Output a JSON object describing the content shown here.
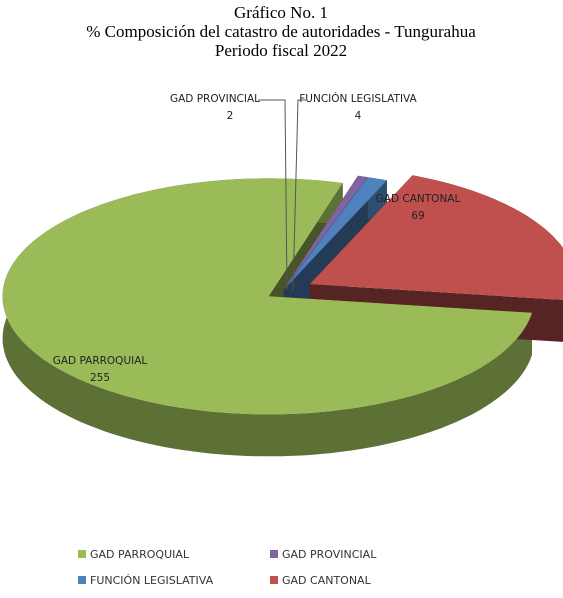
{
  "chart_data": {
    "type": "pie",
    "title": [
      "Gráfico No. 1",
      "% Composición del catastro de autoridades - Tungurahua",
      "Periodo fiscal 2022"
    ],
    "categories": [
      "GAD PARROQUIAL",
      "GAD PROVINCIAL",
      "FUNCIÓN LEGISLATIVA",
      "GAD CANTONAL"
    ],
    "values": [
      255,
      2,
      4,
      69
    ],
    "colors": [
      "#9bbb59",
      "#8064a2",
      "#4f81bd",
      "#c0504d"
    ],
    "legend": "bottom"
  }
}
